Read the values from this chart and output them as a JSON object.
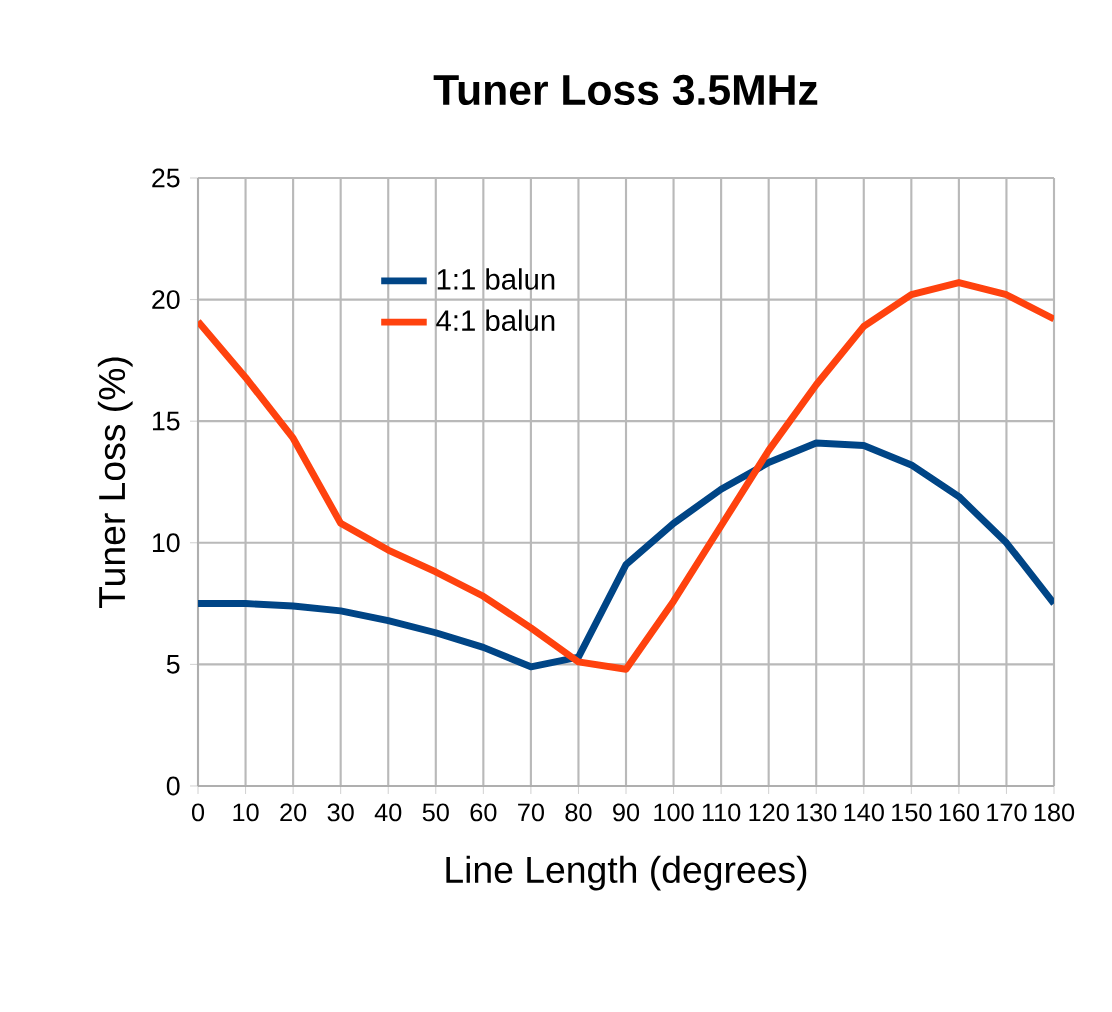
{
  "chart_data": {
    "type": "line",
    "title": "Tuner Loss 3.5MHz",
    "xlabel": "Line Length (degrees)",
    "ylabel": "Tuner Loss (%)",
    "x": [
      0,
      10,
      20,
      30,
      40,
      50,
      60,
      70,
      80,
      90,
      100,
      110,
      120,
      130,
      140,
      150,
      160,
      170,
      180
    ],
    "series": [
      {
        "name": "1:1 balun",
        "color": "#004586",
        "values": [
          7.5,
          7.5,
          7.4,
          7.2,
          6.8,
          6.3,
          5.7,
          4.9,
          5.3,
          9.1,
          10.8,
          12.2,
          13.3,
          14.1,
          14.0,
          13.2,
          11.9,
          10.0,
          7.5
        ]
      },
      {
        "name": "4:1 balun",
        "color": "#ff420e",
        "values": [
          19.1,
          16.8,
          14.3,
          10.8,
          9.7,
          8.8,
          7.8,
          6.5,
          5.1,
          4.8,
          7.6,
          10.7,
          13.8,
          16.5,
          18.9,
          20.2,
          20.7,
          20.2,
          19.2
        ]
      }
    ],
    "xlim": [
      0,
      180
    ],
    "xticks": [
      0,
      10,
      20,
      30,
      40,
      50,
      60,
      70,
      80,
      90,
      100,
      110,
      120,
      130,
      140,
      150,
      160,
      170,
      180
    ],
    "ylim": [
      0,
      25
    ],
    "yticks": [
      0,
      5,
      10,
      15,
      20,
      25
    ],
    "grid": true,
    "legend": "top left",
    "marker": "none",
    "line_style": "solid"
  }
}
